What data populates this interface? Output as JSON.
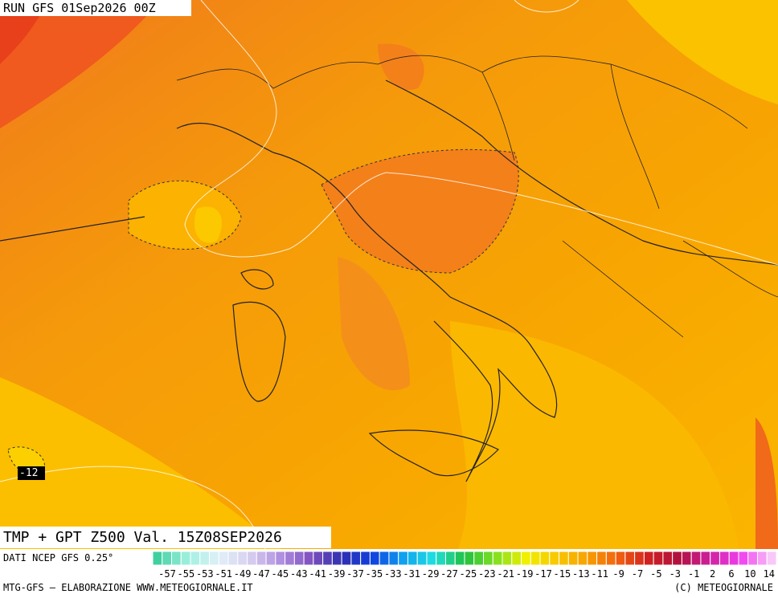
{
  "header": {
    "run": "RUN GFS 01Sep2026 00Z"
  },
  "map": {
    "contour_label": "-12"
  },
  "caption": {
    "title": "TMP + GPT Z500 Val. 15Z08SEP2026",
    "source": "DATI NCEP GFS 0.25°"
  },
  "scale": {
    "labels": [
      -57,
      -55,
      -53,
      -51,
      -49,
      -47,
      -45,
      -43,
      -41,
      -39,
      -37,
      -35,
      -33,
      -31,
      -29,
      -27,
      -25,
      -23,
      -21,
      -19,
      -17,
      -15,
      -13,
      -11,
      -9,
      -7,
      -5,
      -3,
      -1,
      2,
      6,
      10,
      14
    ]
  },
  "footer": {
    "left": "MTG-GFS — ELABORAZIONE WWW.METEOGIORNALE.IT",
    "right": "(C) METEOGIORNALE"
  }
}
